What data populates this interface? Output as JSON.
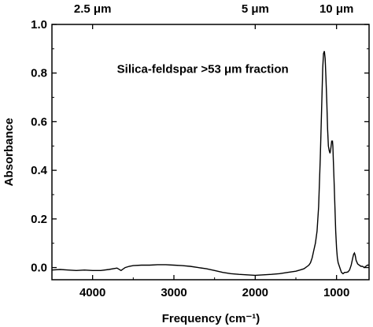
{
  "chart_data": {
    "type": "line",
    "xlabel": "Frequency (cm⁻¹)",
    "ylabel": "Absorbance",
    "x_reversed": true,
    "xlim": [
      4500,
      600
    ],
    "ylim": [
      -0.05,
      1.0
    ],
    "x_ticks": [
      4000,
      3000,
      2000,
      1000
    ],
    "x_tick_labels": [
      "4000",
      "3000",
      "2000",
      "1000"
    ],
    "y_ticks": [
      0.0,
      0.2,
      0.4,
      0.6,
      0.8,
      1.0
    ],
    "y_tick_labels": [
      "0.0",
      "0.2",
      "0.4",
      "0.6",
      "0.8",
      "1.0"
    ],
    "top_axis": {
      "ticks_wavenumber": [
        4000,
        2000,
        1000
      ],
      "labels": [
        "2.5 μm",
        "5 μm",
        "10 μm"
      ]
    },
    "annotations": [
      {
        "text": "Silica-feldspar >53 μm fraction",
        "x": 3700,
        "y": 0.8
      }
    ],
    "grid": false,
    "series": [
      {
        "x": [
          4500,
          4400,
          4300,
          4200,
          4100,
          4000,
          3900,
          3800,
          3700,
          3650,
          3600,
          3550,
          3500,
          3400,
          3300,
          3200,
          3100,
          3000,
          2900,
          2800,
          2700,
          2600,
          2500,
          2400,
          2300,
          2200,
          2100,
          2000,
          1900,
          1800,
          1700,
          1600,
          1500,
          1450,
          1400,
          1380,
          1360,
          1340,
          1320,
          1300,
          1280,
          1260,
          1240,
          1220,
          1200,
          1180,
          1170,
          1160,
          1150,
          1140,
          1130,
          1120,
          1110,
          1100,
          1090,
          1080,
          1070,
          1060,
          1050,
          1045,
          1040,
          1030,
          1020,
          1010,
          1000,
          990,
          980,
          960,
          940,
          920,
          900,
          880,
          860,
          840,
          820,
          800,
          790,
          780,
          770,
          760,
          740,
          720,
          700,
          680,
          660,
          640,
          620,
          600
        ],
        "values": [
          -0.01,
          -0.008,
          -0.01,
          -0.012,
          -0.01,
          -0.012,
          -0.012,
          -0.008,
          -0.002,
          -0.012,
          0.0,
          0.005,
          0.008,
          0.01,
          0.01,
          0.012,
          0.012,
          0.01,
          0.008,
          0.005,
          0.0,
          -0.005,
          -0.012,
          -0.02,
          -0.025,
          -0.028,
          -0.03,
          -0.032,
          -0.03,
          -0.028,
          -0.025,
          -0.02,
          -0.015,
          -0.01,
          -0.005,
          0.0,
          0.005,
          0.01,
          0.02,
          0.04,
          0.07,
          0.1,
          0.15,
          0.25,
          0.45,
          0.7,
          0.82,
          0.88,
          0.89,
          0.86,
          0.78,
          0.68,
          0.57,
          0.5,
          0.48,
          0.47,
          0.49,
          0.52,
          0.52,
          0.5,
          0.45,
          0.35,
          0.25,
          0.15,
          0.08,
          0.04,
          0.02,
          0.0,
          -0.02,
          -0.025,
          -0.02,
          -0.02,
          -0.018,
          -0.01,
          0.01,
          0.04,
          0.055,
          0.06,
          0.05,
          0.03,
          0.015,
          0.01,
          0.005,
          0.005,
          0.0,
          0.005,
          0.01,
          0.01
        ]
      }
    ]
  }
}
